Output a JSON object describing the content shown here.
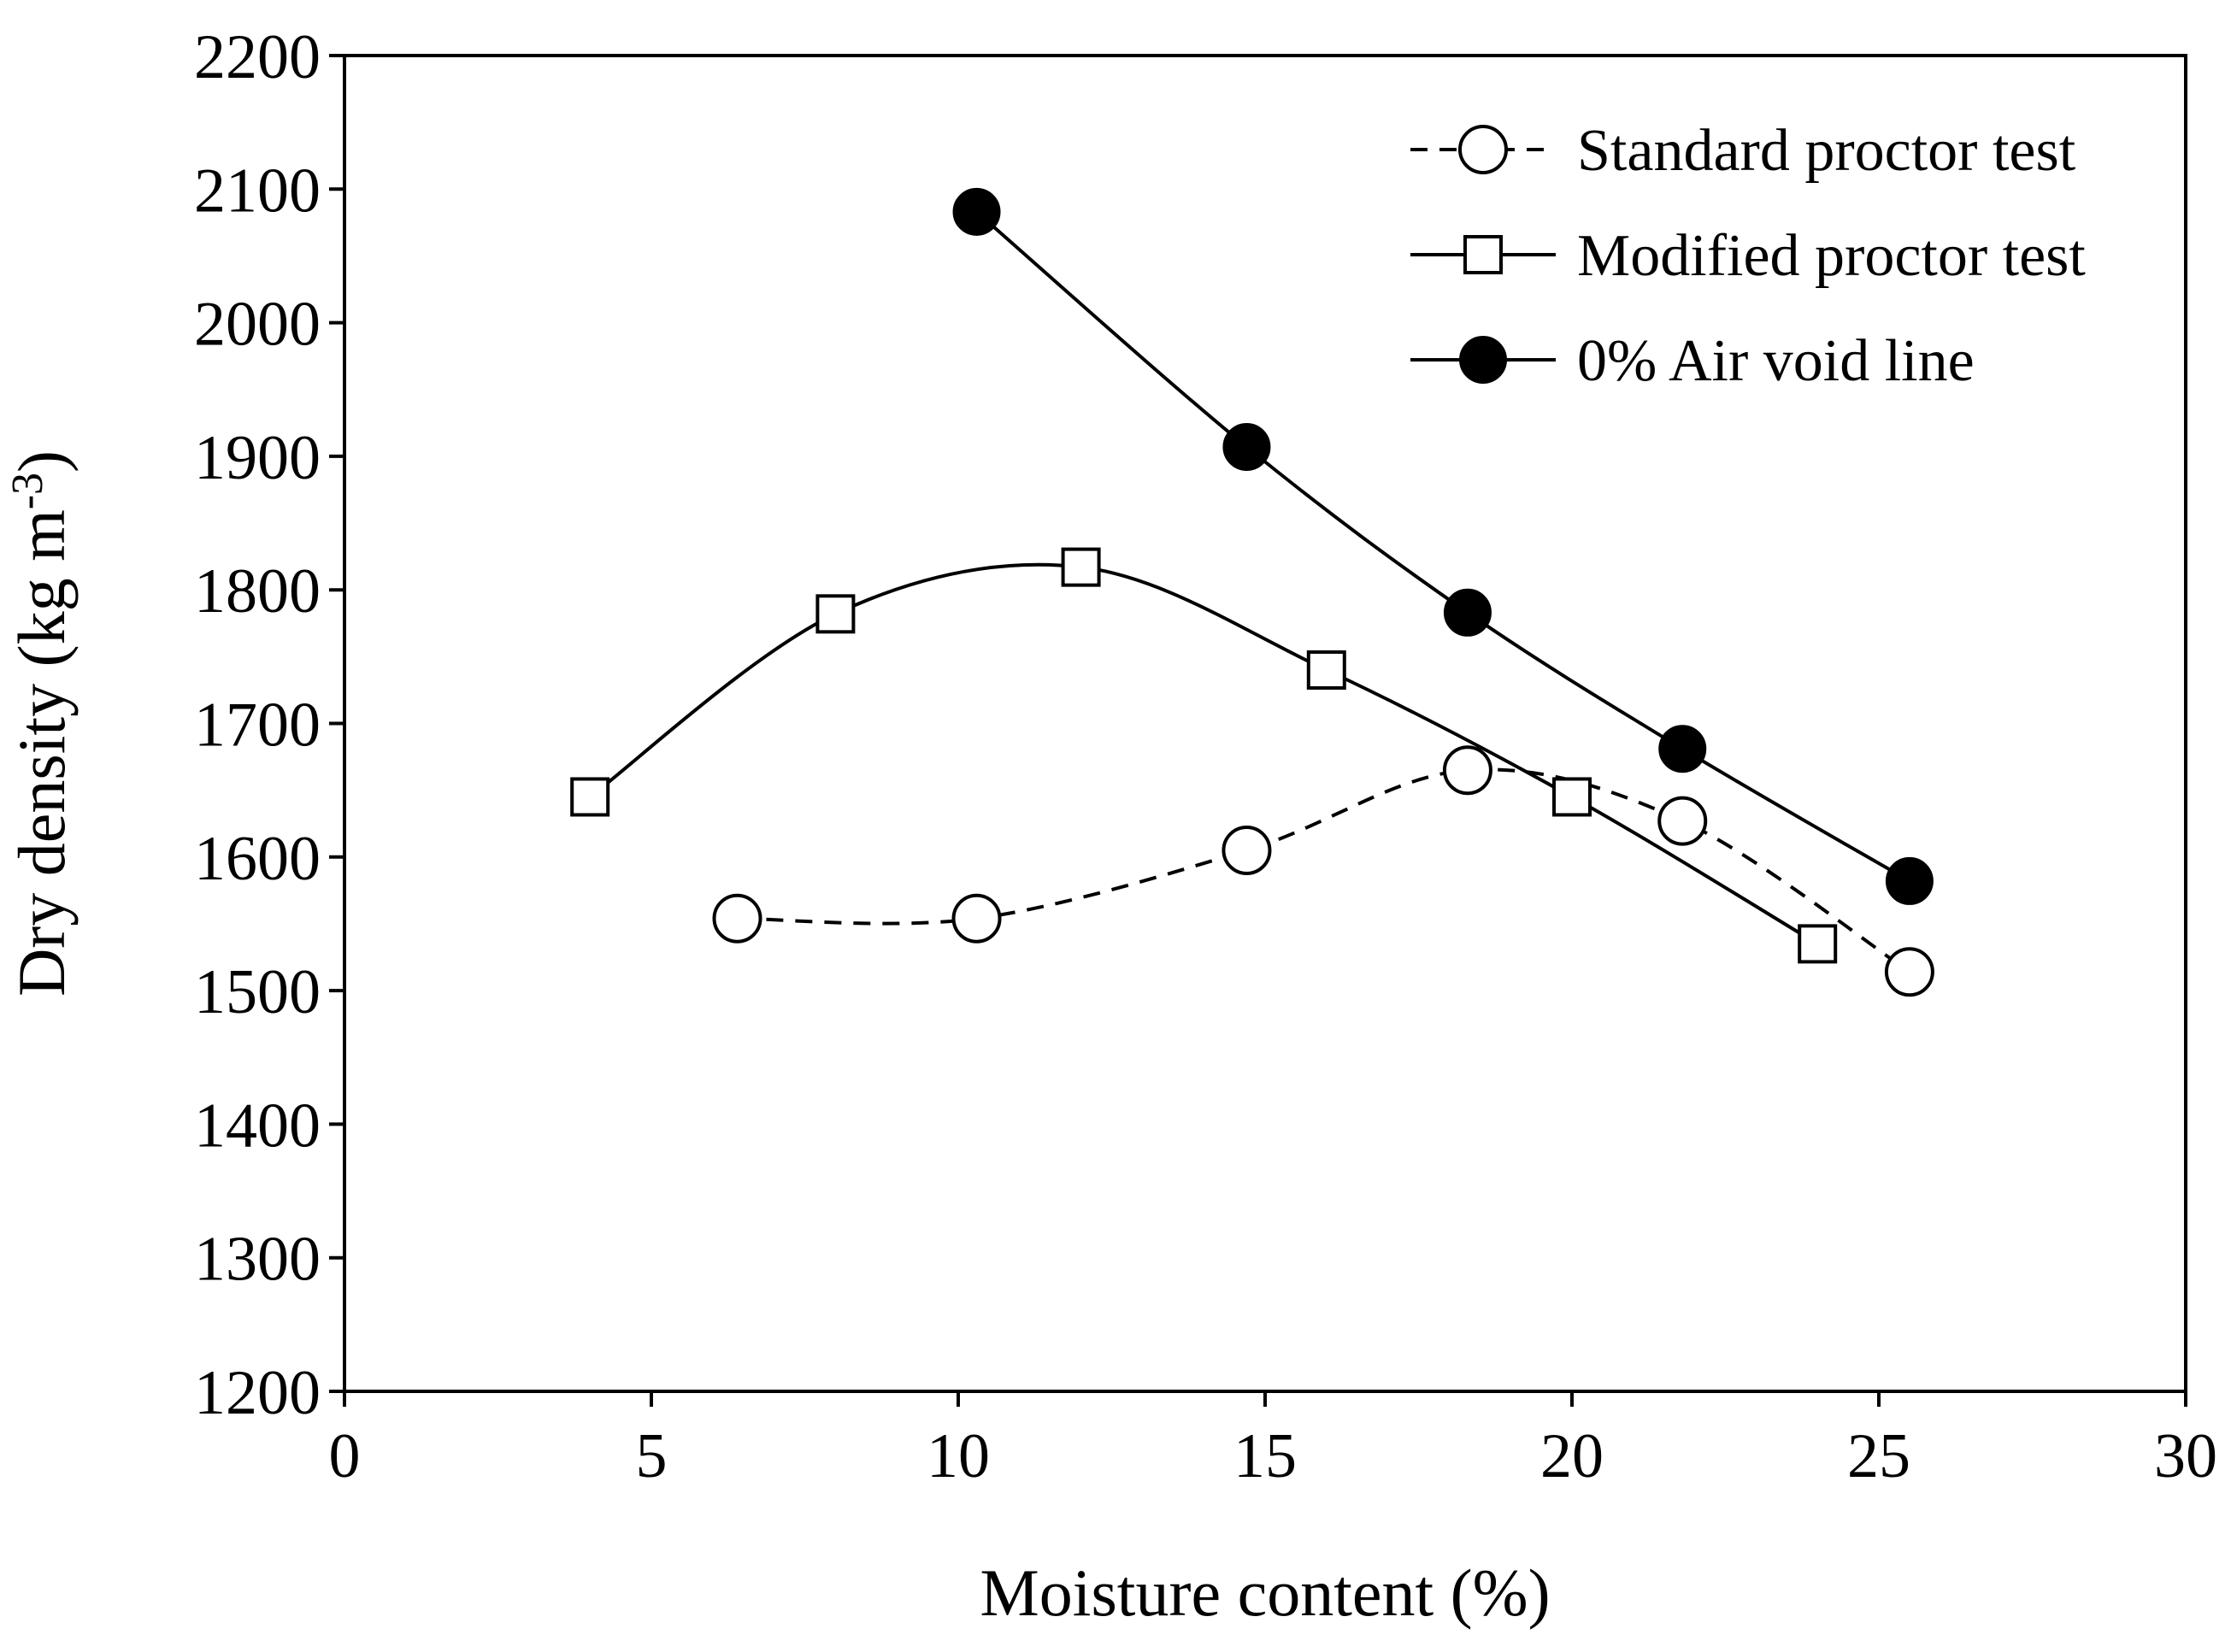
{
  "chart_data": {
    "type": "line",
    "title": "",
    "xlabel": "Moisture content (%)",
    "ylabel": {
      "main": "Dry density (kg m",
      "sup": "-3",
      "close": ")"
    },
    "xlim": [
      0,
      30
    ],
    "ylim": [
      1200,
      2200
    ],
    "xticks": [
      0,
      5,
      10,
      15,
      20,
      25,
      30
    ],
    "yticks": [
      1200,
      1300,
      1400,
      1500,
      1600,
      1700,
      1800,
      1900,
      2000,
      2100,
      2200
    ],
    "grid": false,
    "legend_position": "top-right",
    "series": [
      {
        "name": "Standard proctor test",
        "marker": "open-circle",
        "line": "dashed",
        "color": "#000000",
        "x": [
          6.4,
          10.3,
          14.7,
          18.3,
          21.8,
          25.5
        ],
        "y": [
          1554,
          1554,
          1605,
          1665,
          1627,
          1514
        ]
      },
      {
        "name": "Modified proctor test",
        "marker": "open-square",
        "line": "solid",
        "color": "#000000",
        "x": [
          4,
          8,
          12,
          16,
          20,
          24
        ],
        "y": [
          1645,
          1782,
          1817,
          1740,
          1645,
          1535
        ]
      },
      {
        "name": "0% Air void line",
        "marker": "filled-circle",
        "line": "solid",
        "color": "#000000",
        "x": [
          10.3,
          14.7,
          18.3,
          21.8,
          25.5
        ],
        "y": [
          2083,
          1907,
          1783,
          1681,
          1582
        ]
      }
    ]
  }
}
